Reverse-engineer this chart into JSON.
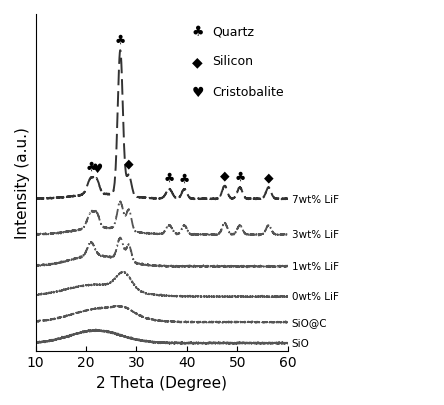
{
  "xlabel": "2 Theta (Degree)",
  "ylabel": "Intensity (a.u.)",
  "xlim": [
    10,
    60
  ],
  "legend_entries": [
    {
      "label": "Quartz",
      "symbol": "♣"
    },
    {
      "label": "Silicon",
      "symbol": "◆"
    },
    {
      "label": "Cristobalite",
      "symbol": "♥"
    }
  ],
  "curve_labels": [
    "SiO",
    "SiO@C",
    "0wt% LiF",
    "1wt% LiF",
    "3wt% LiF",
    "7wt% LiF"
  ],
  "offsets": [
    0.0,
    0.1,
    0.22,
    0.36,
    0.51,
    0.68
  ],
  "scale_factors": [
    0.07,
    0.08,
    0.12,
    0.14,
    0.16,
    0.7
  ],
  "peak_annotations": [
    {
      "x": 21.0,
      "symbol": "♣"
    },
    {
      "x": 22.2,
      "symbol": "♥"
    },
    {
      "x": 26.8,
      "symbol": "♣"
    },
    {
      "x": 28.5,
      "symbol": "◆"
    },
    {
      "x": 36.5,
      "symbol": "♣"
    },
    {
      "x": 39.5,
      "symbol": "♣"
    },
    {
      "x": 47.5,
      "symbol": "◆"
    },
    {
      "x": 50.5,
      "symbol": "♣"
    },
    {
      "x": 56.2,
      "symbol": "◆"
    }
  ],
  "background_color": "#ffffff",
  "fontsize_label": 11,
  "fontsize_tick": 10
}
